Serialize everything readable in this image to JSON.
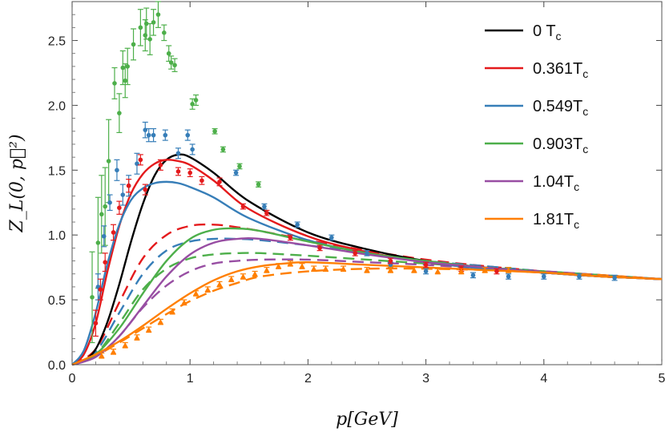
{
  "chart_data": {
    "type": "line",
    "title": "",
    "xlabel": "p[GeV]",
    "ylabel": "Z_L(0, p⃗²)",
    "xlim": [
      0,
      5
    ],
    "ylim": [
      0,
      2.8
    ],
    "xticks": [
      0,
      1,
      2,
      3,
      4,
      5
    ],
    "yticks": [
      0.0,
      0.5,
      1.0,
      1.5,
      2.0,
      2.5
    ],
    "xtick_labels": [
      "0",
      "1",
      "2",
      "3",
      "4",
      "5"
    ],
    "ytick_labels": [
      "0.0",
      "0.5",
      "1.0",
      "1.5",
      "2.0",
      "2.5"
    ],
    "legend_position": "top-right",
    "legend": [
      {
        "text": "0 T",
        "sub": "c",
        "color": "#000000"
      },
      {
        "text": "0.361T",
        "sub": "c",
        "color": "#e41a1c"
      },
      {
        "text": "0.549T",
        "sub": "c",
        "color": "#377eb8"
      },
      {
        "text": "0.903T",
        "sub": "c",
        "color": "#4daf4a"
      },
      {
        "text": "1.04T",
        "sub": "c",
        "color": "#984ea3"
      },
      {
        "text": "1.81T",
        "sub": "c",
        "color": "#ff7f00"
      }
    ],
    "curves": [
      {
        "name": "0 Tc",
        "color": "#000000",
        "dashed": false,
        "x": [
          0,
          0.1,
          0.2,
          0.3,
          0.4,
          0.5,
          0.6,
          0.7,
          0.8,
          0.9,
          1.0,
          1.2,
          1.5,
          2.0,
          2.5,
          3.0,
          3.5,
          4.0,
          4.5,
          5.0
        ],
        "y": [
          0,
          0.03,
          0.12,
          0.33,
          0.62,
          0.95,
          1.24,
          1.46,
          1.58,
          1.62,
          1.6,
          1.48,
          1.26,
          1.02,
          0.89,
          0.8,
          0.75,
          0.71,
          0.68,
          0.66
        ]
      },
      {
        "name": "0.361Tc",
        "color": "#e41a1c",
        "dashed": false,
        "x": [
          0,
          0.1,
          0.2,
          0.3,
          0.4,
          0.5,
          0.6,
          0.7,
          0.8,
          0.9,
          1.0,
          1.2,
          1.5,
          2.0,
          2.5,
          3.0,
          3.5,
          4.0,
          4.5,
          5.0
        ],
        "y": [
          0,
          0.08,
          0.32,
          0.72,
          1.07,
          1.32,
          1.47,
          1.55,
          1.58,
          1.57,
          1.54,
          1.42,
          1.2,
          0.99,
          0.87,
          0.79,
          0.74,
          0.71,
          0.68,
          0.66
        ]
      },
      {
        "name": "0.549Tc",
        "color": "#377eb8",
        "dashed": false,
        "x": [
          0,
          0.1,
          0.2,
          0.3,
          0.4,
          0.5,
          0.6,
          0.7,
          0.8,
          0.9,
          1.0,
          1.2,
          1.5,
          2.0,
          2.5,
          3.0,
          3.5,
          4.0,
          4.5,
          5.0
        ],
        "y": [
          0,
          0.11,
          0.4,
          0.78,
          1.08,
          1.27,
          1.36,
          1.4,
          1.41,
          1.4,
          1.37,
          1.29,
          1.13,
          0.96,
          0.86,
          0.79,
          0.74,
          0.71,
          0.68,
          0.66
        ]
      },
      {
        "name": "0.903Tc",
        "color": "#4daf4a",
        "dashed": false,
        "x": [
          0,
          0.2,
          0.4,
          0.6,
          0.8,
          1.0,
          1.2,
          1.4,
          1.6,
          2.0,
          2.5,
          3.0,
          3.5,
          4.0,
          4.5,
          5.0
        ],
        "y": [
          0,
          0.08,
          0.28,
          0.55,
          0.8,
          0.97,
          1.04,
          1.05,
          1.03,
          0.95,
          0.86,
          0.8,
          0.75,
          0.71,
          0.68,
          0.66
        ]
      },
      {
        "name": "1.04Tc",
        "color": "#984ea3",
        "dashed": false,
        "x": [
          0,
          0.2,
          0.4,
          0.6,
          0.8,
          1.0,
          1.2,
          1.4,
          1.6,
          2.0,
          2.5,
          3.0,
          3.5,
          4.0,
          4.5,
          5.0
        ],
        "y": [
          0,
          0.06,
          0.22,
          0.45,
          0.68,
          0.85,
          0.94,
          0.97,
          0.97,
          0.92,
          0.85,
          0.79,
          0.75,
          0.71,
          0.68,
          0.66
        ]
      },
      {
        "name": "1.81Tc",
        "color": "#ff7f00",
        "dashed": false,
        "x": [
          0,
          0.2,
          0.4,
          0.6,
          0.8,
          1.0,
          1.2,
          1.4,
          1.6,
          1.8,
          2.0,
          2.5,
          3.0,
          3.5,
          4.0,
          4.5,
          5.0
        ],
        "y": [
          0,
          0.08,
          0.18,
          0.3,
          0.43,
          0.55,
          0.65,
          0.72,
          0.76,
          0.78,
          0.79,
          0.77,
          0.75,
          0.73,
          0.71,
          0.68,
          0.66
        ]
      },
      {
        "name": "0.361Tc model",
        "color": "#e41a1c",
        "dashed": true,
        "x": [
          0,
          0.2,
          0.4,
          0.6,
          0.8,
          1.0,
          1.2,
          1.4,
          1.6,
          2.0,
          2.5,
          3.0,
          3.5,
          4.0,
          4.5,
          5.0
        ],
        "y": [
          0,
          0.12,
          0.48,
          0.82,
          1.0,
          1.07,
          1.08,
          1.06,
          1.03,
          0.96,
          0.88,
          0.81,
          0.76,
          0.72,
          0.69,
          0.66
        ]
      },
      {
        "name": "0.549Tc model",
        "color": "#377eb8",
        "dashed": true,
        "x": [
          0,
          0.2,
          0.4,
          0.6,
          0.8,
          1.0,
          1.2,
          1.4,
          1.6,
          2.0,
          2.5,
          3.0,
          3.5,
          4.0,
          4.5,
          5.0
        ],
        "y": [
          0,
          0.1,
          0.4,
          0.7,
          0.88,
          0.95,
          0.97,
          0.97,
          0.96,
          0.92,
          0.86,
          0.8,
          0.76,
          0.72,
          0.69,
          0.66
        ]
      },
      {
        "name": "0.903Tc model",
        "color": "#4daf4a",
        "dashed": true,
        "x": [
          0,
          0.2,
          0.4,
          0.6,
          0.8,
          1.0,
          1.2,
          1.4,
          1.6,
          2.0,
          2.5,
          3.0,
          3.5,
          4.0,
          4.5,
          5.0
        ],
        "y": [
          0,
          0.08,
          0.32,
          0.58,
          0.74,
          0.82,
          0.85,
          0.86,
          0.86,
          0.84,
          0.81,
          0.78,
          0.75,
          0.72,
          0.69,
          0.66
        ]
      },
      {
        "name": "1.04Tc model",
        "color": "#984ea3",
        "dashed": true,
        "x": [
          0,
          0.2,
          0.4,
          0.6,
          0.8,
          1.0,
          1.2,
          1.4,
          1.6,
          2.0,
          2.5,
          3.0,
          3.5,
          4.0,
          4.5,
          5.0
        ],
        "y": [
          0,
          0.06,
          0.22,
          0.44,
          0.61,
          0.72,
          0.78,
          0.8,
          0.81,
          0.81,
          0.79,
          0.77,
          0.74,
          0.72,
          0.69,
          0.66
        ]
      },
      {
        "name": "1.81Tc model",
        "color": "#ff7f00",
        "dashed": true,
        "x": [
          0,
          0.2,
          0.4,
          0.6,
          0.8,
          1.0,
          1.2,
          1.4,
          1.6,
          2.0,
          2.5,
          3.0,
          3.5,
          4.0,
          4.5,
          5.0
        ],
        "y": [
          0,
          0.07,
          0.17,
          0.28,
          0.39,
          0.49,
          0.57,
          0.63,
          0.68,
          0.72,
          0.74,
          0.74,
          0.73,
          0.71,
          0.69,
          0.66
        ]
      }
    ],
    "points": [
      {
        "name": "0.903Tc lattice",
        "color": "#4daf4a",
        "marker": "circle",
        "x": [
          0.17,
          0.22,
          0.25,
          0.28,
          0.31,
          0.36,
          0.4,
          0.43,
          0.45,
          0.47,
          0.52,
          0.58,
          0.62,
          0.63,
          0.66,
          0.69,
          0.73,
          0.78,
          0.82,
          0.84,
          0.87,
          1.02,
          1.05,
          1.21,
          1.28,
          1.42,
          1.58
        ],
        "y": [
          0.52,
          0.94,
          1.16,
          1.22,
          1.57,
          2.17,
          1.94,
          2.29,
          2.19,
          2.3,
          2.47,
          2.6,
          2.54,
          2.63,
          2.51,
          2.64,
          2.7,
          2.56,
          2.4,
          2.33,
          2.31,
          2.01,
          2.04,
          1.8,
          1.66,
          1.53,
          1.39
        ],
        "err": [
          0.35,
          0.35,
          0.3,
          0.3,
          0.32,
          0.12,
          0.15,
          0.13,
          0.13,
          0.14,
          0.12,
          0.14,
          0.12,
          0.12,
          0.12,
          0.1,
          0.1,
          0.06,
          0.06,
          0.05,
          0.05,
          0.04,
          0.04,
          0.02,
          0.02,
          0.02,
          0.02
        ]
      },
      {
        "name": "0.549Tc lattice",
        "color": "#377eb8",
        "marker": "circle",
        "x": [
          0.22,
          0.27,
          0.32,
          0.38,
          0.43,
          0.48,
          0.55,
          0.62,
          0.65,
          0.69,
          0.79,
          0.9,
          0.98,
          1.02,
          1.39,
          1.63,
          1.91,
          2.2,
          2.5,
          2.7,
          3.0,
          3.4,
          3.7,
          4.0,
          4.3,
          4.6
        ],
        "y": [
          0.6,
          0.99,
          1.25,
          1.5,
          1.31,
          1.38,
          1.55,
          1.81,
          1.77,
          1.77,
          1.77,
          1.63,
          1.77,
          1.66,
          1.48,
          1.22,
          1.08,
          0.98,
          0.86,
          0.77,
          0.72,
          0.69,
          0.68,
          0.68,
          0.68,
          0.67
        ],
        "err": [
          0.1,
          0.08,
          0.06,
          0.08,
          0.08,
          0.08,
          0.08,
          0.06,
          0.05,
          0.05,
          0.04,
          0.04,
          0.04,
          0.04,
          0.02,
          0.02,
          0.02,
          0.02,
          0.02,
          0.02,
          0.02,
          0.02,
          0.02,
          0.02,
          0.02,
          0.02
        ]
      },
      {
        "name": "0.361Tc lattice",
        "color": "#e41a1c",
        "marker": "circle",
        "x": [
          0.2,
          0.24,
          0.28,
          0.35,
          0.4,
          0.48,
          0.58,
          0.62,
          0.75,
          0.9,
          1.0,
          1.1,
          1.25,
          1.45,
          1.65,
          1.85,
          2.1,
          2.4,
          2.7,
          3.0,
          3.3,
          3.6
        ],
        "y": [
          0.32,
          0.58,
          0.79,
          1.02,
          1.21,
          1.38,
          1.58,
          1.35,
          1.54,
          1.49,
          1.48,
          1.42,
          1.41,
          1.22,
          1.17,
          0.98,
          0.9,
          0.86,
          0.8,
          0.77,
          0.74,
          0.72
        ],
        "err": [
          0.1,
          0.08,
          0.07,
          0.06,
          0.05,
          0.05,
          0.04,
          0.04,
          0.04,
          0.03,
          0.03,
          0.03,
          0.03,
          0.02,
          0.02,
          0.02,
          0.02,
          0.02,
          0.02,
          0.02,
          0.02,
          0.02
        ]
      },
      {
        "name": "1.81Tc lattice",
        "color": "#ff7f00",
        "marker": "triangle",
        "x": [
          0.25,
          0.35,
          0.45,
          0.55,
          0.65,
          0.75,
          0.85,
          0.95,
          1.05,
          1.15,
          1.25,
          1.35,
          1.45,
          1.55,
          1.65,
          1.75,
          1.85,
          1.95,
          2.05,
          2.15,
          2.3,
          2.5,
          2.7,
          2.9,
          3.1,
          3.3,
          3.5,
          3.7
        ],
        "y": [
          0.07,
          0.1,
          0.15,
          0.21,
          0.27,
          0.33,
          0.41,
          0.48,
          0.55,
          0.58,
          0.62,
          0.66,
          0.68,
          0.7,
          0.73,
          0.76,
          0.78,
          0.76,
          0.74,
          0.74,
          0.74,
          0.73,
          0.73,
          0.73,
          0.72,
          0.72,
          0.73,
          0.73
        ],
        "err": [
          0.02,
          0.02,
          0.02,
          0.02,
          0.02,
          0.02,
          0.02,
          0.02,
          0.02,
          0.02,
          0.02,
          0.02,
          0.02,
          0.02,
          0.02,
          0.02,
          0.02,
          0.02,
          0.02,
          0.02,
          0.02,
          0.02,
          0.02,
          0.02,
          0.02,
          0.02,
          0.02,
          0.02
        ]
      }
    ]
  }
}
